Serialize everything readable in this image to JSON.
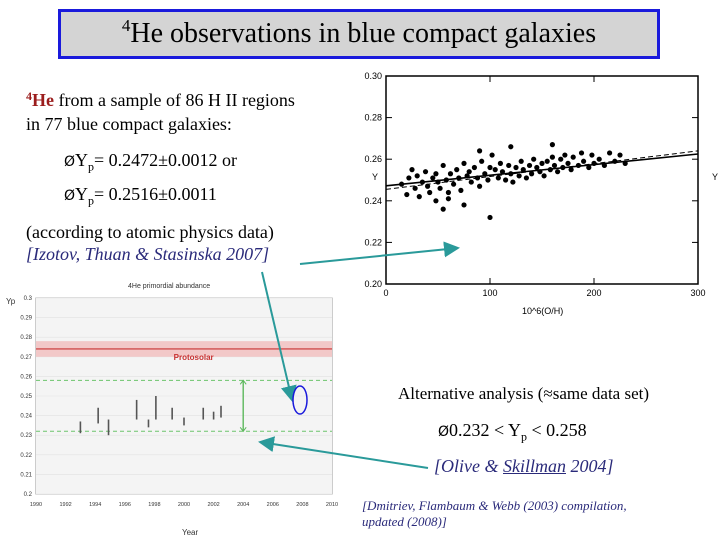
{
  "title": {
    "prefix_sup": "4",
    "text": "He observations in  blue compact galaxies"
  },
  "intro": {
    "sup": "4",
    "he": "He",
    "line1_rest": " from a sample of 86 H II regions",
    "line2": "in 77 blue compact galaxies:"
  },
  "results": [
    {
      "marker": "Ø",
      "label": "Y",
      "sub": "p",
      "value": "= 0.2472±0.0012 or"
    },
    {
      "marker": "Ø",
      "label": "Y",
      "sub": "p",
      "value": "= 0.2516±0.0011"
    }
  ],
  "note": {
    "line1": "(according to atomic physics data)",
    "citation": "[Izotov, Thuan & Stasinska 2007]"
  },
  "alt": {
    "heading": "Alternative analysis (≈same data set)",
    "range_marker": "Ø",
    "range_pre": "0.232 < Y",
    "range_sub": "p",
    "range_post": " < 0.258",
    "cite_pre": "[Olive & ",
    "cite_link": "Skillman",
    "cite_post": " 2004]"
  },
  "footnote": {
    "line1": "[Dmitriev, Flambaum & Webb (2003) compilation,",
    "line2": "updated (2008)]"
  },
  "chart_data": [
    {
      "type": "scatter",
      "title": "",
      "xlabel": "10^6(O/H)",
      "ylabel": "Y",
      "right_ylabel": "Y",
      "xlim": [
        0,
        300
      ],
      "ylim": [
        0.2,
        0.3
      ],
      "xticks": [
        "0",
        "100",
        "200",
        "300"
      ],
      "yticks": [
        "0.20",
        "0.22",
        "0.24",
        "0.26",
        "0.28",
        "0.30"
      ],
      "fit_lines": [
        {
          "name": "fit",
          "x": [
            0,
            300
          ],
          "y": [
            0.2472,
            0.2625
          ]
        },
        {
          "name": "fit-alt",
          "x": [
            0,
            300
          ],
          "y": [
            0.2455,
            0.264
          ]
        }
      ],
      "points": [
        [
          15,
          0.248
        ],
        [
          20,
          0.243
        ],
        [
          22,
          0.251
        ],
        [
          25,
          0.255
        ],
        [
          28,
          0.246
        ],
        [
          30,
          0.252
        ],
        [
          32,
          0.242
        ],
        [
          35,
          0.249
        ],
        [
          38,
          0.254
        ],
        [
          40,
          0.247
        ],
        [
          42,
          0.244
        ],
        [
          45,
          0.251
        ],
        [
          48,
          0.253
        ],
        [
          50,
          0.249
        ],
        [
          52,
          0.246
        ],
        [
          55,
          0.257
        ],
        [
          58,
          0.25
        ],
        [
          60,
          0.244
        ],
        [
          62,
          0.253
        ],
        [
          65,
          0.248
        ],
        [
          68,
          0.255
        ],
        [
          70,
          0.251
        ],
        [
          72,
          0.245
        ],
        [
          75,
          0.258
        ],
        [
          78,
          0.252
        ],
        [
          80,
          0.254
        ],
        [
          82,
          0.249
        ],
        [
          85,
          0.256
        ],
        [
          88,
          0.251
        ],
        [
          90,
          0.247
        ],
        [
          92,
          0.259
        ],
        [
          95,
          0.253
        ],
        [
          98,
          0.25
        ],
        [
          100,
          0.256
        ],
        [
          102,
          0.262
        ],
        [
          105,
          0.255
        ],
        [
          108,
          0.251
        ],
        [
          110,
          0.258
        ],
        [
          112,
          0.254
        ],
        [
          115,
          0.25
        ],
        [
          118,
          0.257
        ],
        [
          120,
          0.253
        ],
        [
          122,
          0.249
        ],
        [
          125,
          0.256
        ],
        [
          128,
          0.252
        ],
        [
          130,
          0.259
        ],
        [
          132,
          0.255
        ],
        [
          135,
          0.251
        ],
        [
          138,
          0.257
        ],
        [
          140,
          0.253
        ],
        [
          142,
          0.26
        ],
        [
          145,
          0.256
        ],
        [
          148,
          0.254
        ],
        [
          150,
          0.258
        ],
        [
          152,
          0.252
        ],
        [
          155,
          0.259
        ],
        [
          158,
          0.255
        ],
        [
          160,
          0.261
        ],
        [
          162,
          0.257
        ],
        [
          165,
          0.254
        ],
        [
          168,
          0.26
        ],
        [
          170,
          0.256
        ],
        [
          172,
          0.262
        ],
        [
          175,
          0.258
        ],
        [
          178,
          0.255
        ],
        [
          180,
          0.261
        ],
        [
          185,
          0.257
        ],
        [
          188,
          0.263
        ],
        [
          190,
          0.259
        ],
        [
          195,
          0.256
        ],
        [
          198,
          0.262
        ],
        [
          200,
          0.258
        ],
        [
          205,
          0.26
        ],
        [
          210,
          0.257
        ],
        [
          215,
          0.263
        ],
        [
          220,
          0.259
        ],
        [
          225,
          0.262
        ],
        [
          230,
          0.258
        ],
        [
          55,
          0.236
        ],
        [
          75,
          0.238
        ],
        [
          100,
          0.232
        ],
        [
          48,
          0.24
        ],
        [
          120,
          0.266
        ],
        [
          160,
          0.267
        ],
        [
          90,
          0.264
        ],
        [
          60,
          0.241
        ]
      ]
    },
    {
      "type": "scatter",
      "title": "4He primordial abundance",
      "xlabel": "Year",
      "ylabel": "Yp",
      "xlim": [
        1990,
        2010
      ],
      "ylim": [
        0.2,
        0.3
      ],
      "xticks": [
        "1990",
        "1992",
        "1994",
        "1996",
        "1998",
        "2000",
        "2002",
        "2004",
        "2006",
        "2008",
        "2010"
      ],
      "yticks": [
        "0.2",
        "0.21",
        "0.22",
        "0.23",
        "0.24",
        "0.25",
        "0.26",
        "0.27",
        "0.28",
        "0.29",
        "0.3"
      ],
      "protosolar_label": "Protosolar",
      "protosolar_value": 0.274,
      "protosolar_band": [
        0.27,
        0.278
      ],
      "lower_bound": 0.232,
      "upper_bound": 0.258,
      "measurements": [
        {
          "x": 1993.0,
          "y": 0.234,
          "err": 0.003
        },
        {
          "x": 1994.2,
          "y": 0.24,
          "err": 0.004
        },
        {
          "x": 1994.9,
          "y": 0.234,
          "err": 0.004
        },
        {
          "x": 1996.8,
          "y": 0.243,
          "err": 0.005
        },
        {
          "x": 1997.6,
          "y": 0.236,
          "err": 0.002
        },
        {
          "x": 1998.1,
          "y": 0.244,
          "err": 0.006
        },
        {
          "x": 1999.2,
          "y": 0.241,
          "err": 0.003
        },
        {
          "x": 2000.0,
          "y": 0.237,
          "err": 0.002
        },
        {
          "x": 2001.3,
          "y": 0.241,
          "err": 0.003
        },
        {
          "x": 2002.0,
          "y": 0.24,
          "err": 0.002
        },
        {
          "x": 2002.5,
          "y": 0.242,
          "err": 0.003
        }
      ],
      "alt_range": {
        "x": 2004.0,
        "low": 0.232,
        "high": 0.258
      }
    }
  ]
}
